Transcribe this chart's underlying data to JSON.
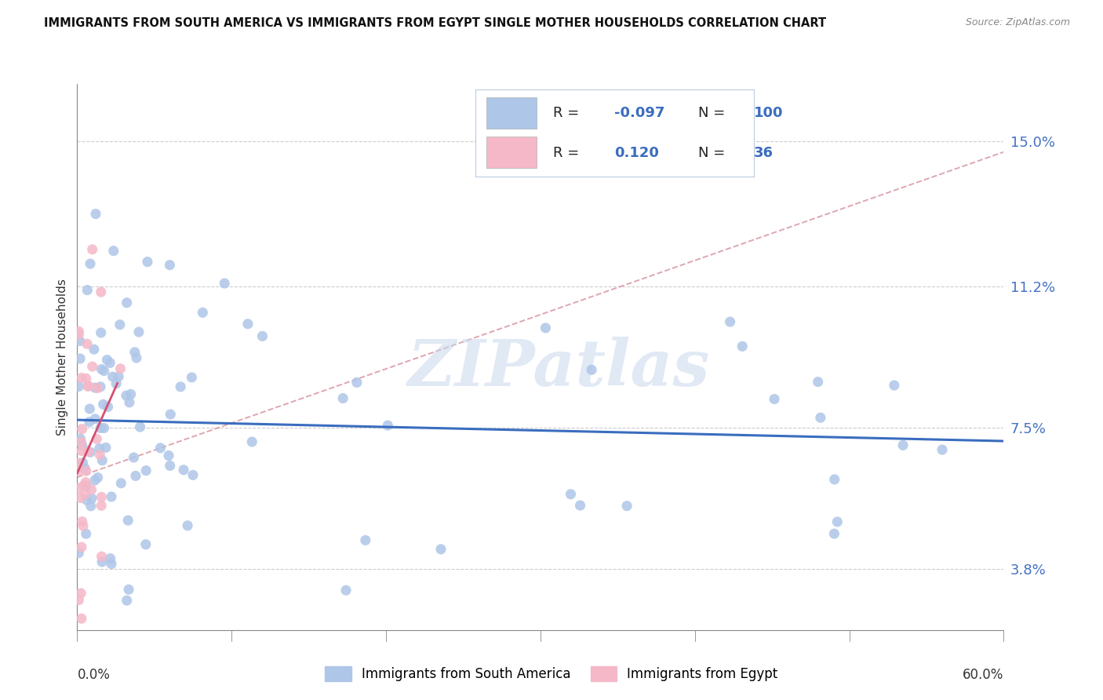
{
  "title": "IMMIGRANTS FROM SOUTH AMERICA VS IMMIGRANTS FROM EGYPT SINGLE MOTHER HOUSEHOLDS CORRELATION CHART",
  "source": "Source: ZipAtlas.com",
  "ylabel": "Single Mother Households",
  "y_ticks": [
    0.038,
    0.075,
    0.112,
    0.15
  ],
  "y_tick_labels": [
    "3.8%",
    "7.5%",
    "11.2%",
    "15.0%"
  ],
  "xlim": [
    0.0,
    0.6
  ],
  "ylim": [
    0.022,
    0.165
  ],
  "series_blue": {
    "label": "Immigrants from South America",
    "R": -0.097,
    "N": 100,
    "color": "#aec6e8",
    "line_color": "#3a6dbf"
  },
  "series_pink": {
    "label": "Immigrants from Egypt",
    "R": 0.12,
    "N": 36,
    "color": "#f5b8c8",
    "line_color": "#d45070"
  },
  "watermark": "ZIPatlas",
  "background_color": "#ffffff",
  "grid_color": "#cccccc",
  "legend_box_color": "#e8eef8"
}
